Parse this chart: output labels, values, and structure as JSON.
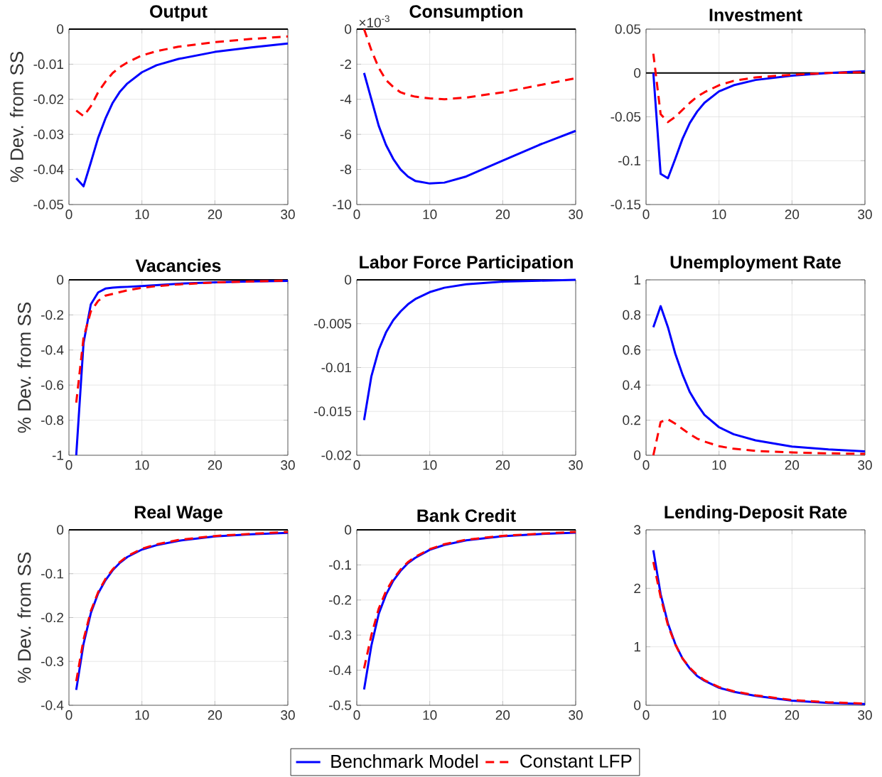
{
  "chart_data": [
    {
      "type": "line",
      "title": "Output",
      "ylabel": "% Dev. from SS",
      "x": [
        1,
        2,
        3,
        4,
        5,
        6,
        7,
        8,
        10,
        12,
        15,
        20,
        25,
        30
      ],
      "xlim": [
        0,
        30
      ],
      "xticks": [
        0,
        10,
        20,
        30
      ],
      "ylim": [
        -0.05,
        0
      ],
      "yticks": [
        -0.05,
        -0.04,
        -0.03,
        -0.02,
        -0.01,
        0
      ],
      "grid": true,
      "marker": "none",
      "ref_lines": [
        {
          "axis": "y",
          "value": 0,
          "color": "#000000"
        }
      ],
      "series": [
        {
          "color": "#0000ff",
          "line_style": "solid",
          "values": [
            -0.0425,
            -0.0448,
            -0.038,
            -0.031,
            -0.0255,
            -0.021,
            -0.0178,
            -0.0155,
            -0.0123,
            -0.0103,
            -0.0085,
            -0.0065,
            -0.0052,
            -0.0041
          ]
        },
        {
          "color": "#ff0000",
          "line_style": "dashed",
          "values": [
            -0.0232,
            -0.0248,
            -0.022,
            -0.018,
            -0.015,
            -0.0125,
            -0.0108,
            -0.0095,
            -0.0075,
            -0.0063,
            -0.005,
            -0.0037,
            -0.0028,
            -0.0021
          ]
        }
      ]
    },
    {
      "type": "line",
      "title": "Consumption",
      "annotations": [
        "×10$^{-3}$"
      ],
      "x": [
        1,
        2,
        3,
        4,
        5,
        6,
        7,
        8,
        10,
        12,
        15,
        20,
        25,
        30
      ],
      "xlim": [
        0,
        30
      ],
      "xticks": [
        0,
        10,
        20,
        30
      ],
      "ylim": [
        -10,
        0
      ],
      "yticks": [
        -10,
        -8,
        -6,
        -4,
        -2,
        0
      ],
      "grid": true,
      "marker": "none",
      "ref_lines": [
        {
          "axis": "y",
          "value": 0,
          "color": "#000000"
        }
      ],
      "series": [
        {
          "color": "#0000ff",
          "line_style": "solid",
          "values": [
            -2.5,
            -4.0,
            -5.5,
            -6.6,
            -7.4,
            -8.0,
            -8.4,
            -8.65,
            -8.8,
            -8.75,
            -8.4,
            -7.5,
            -6.6,
            -5.8
          ]
        },
        {
          "color": "#ff0000",
          "line_style": "dashed",
          "values": [
            0,
            -1.2,
            -2.2,
            -2.9,
            -3.3,
            -3.6,
            -3.75,
            -3.85,
            -3.95,
            -4.0,
            -3.9,
            -3.6,
            -3.2,
            -2.8
          ]
        }
      ]
    },
    {
      "type": "line",
      "title": "Investment",
      "x": [
        1,
        2,
        3,
        4,
        5,
        6,
        7,
        8,
        10,
        12,
        15,
        20,
        25,
        30
      ],
      "xlim": [
        0,
        30
      ],
      "xticks": [
        0,
        10,
        20,
        30
      ],
      "ylim": [
        -0.15,
        0.05
      ],
      "yticks": [
        -0.15,
        -0.1,
        -0.05,
        0,
        0.05
      ],
      "grid": true,
      "marker": "none",
      "ref_lines": [
        {
          "axis": "y",
          "value": 0,
          "color": "#000000"
        }
      ],
      "series": [
        {
          "color": "#0000ff",
          "line_style": "solid",
          "values": [
            0,
            -0.115,
            -0.12,
            -0.098,
            -0.075,
            -0.057,
            -0.044,
            -0.034,
            -0.021,
            -0.014,
            -0.008,
            -0.003,
            0,
            0.002
          ]
        },
        {
          "color": "#ff0000",
          "line_style": "dashed",
          "values": [
            0.022,
            -0.047,
            -0.056,
            -0.05,
            -0.042,
            -0.034,
            -0.027,
            -0.022,
            -0.014,
            -0.009,
            -0.005,
            -0.002,
            0,
            0.001
          ]
        }
      ]
    },
    {
      "type": "line",
      "title": "Vacancies",
      "ylabel": "% Dev. from SS",
      "x": [
        1,
        2,
        3,
        4,
        5,
        6,
        7,
        8,
        10,
        12,
        15,
        20,
        25,
        30
      ],
      "xlim": [
        0,
        30
      ],
      "xticks": [
        0,
        10,
        20,
        30
      ],
      "ylim": [
        -1,
        0
      ],
      "yticks": [
        -1,
        -0.8,
        -0.6,
        -0.4,
        -0.2,
        0
      ],
      "grid": true,
      "marker": "none",
      "ref_lines": [
        {
          "axis": "y",
          "value": 0,
          "color": "#000000"
        }
      ],
      "series": [
        {
          "color": "#0000ff",
          "line_style": "solid",
          "values": [
            -1.0,
            -0.36,
            -0.14,
            -0.072,
            -0.05,
            -0.045,
            -0.042,
            -0.04,
            -0.035,
            -0.03,
            -0.022,
            -0.014,
            -0.009,
            -0.006
          ]
        },
        {
          "color": "#ff0000",
          "line_style": "dashed",
          "values": [
            -0.7,
            -0.33,
            -0.18,
            -0.12,
            -0.09,
            -0.08,
            -0.07,
            -0.06,
            -0.045,
            -0.036,
            -0.026,
            -0.015,
            -0.009,
            -0.005
          ]
        }
      ]
    },
    {
      "type": "line",
      "title": "Labor Force Participation",
      "x": [
        1,
        2,
        3,
        4,
        5,
        6,
        7,
        8,
        10,
        12,
        15,
        20,
        25,
        30
      ],
      "xlim": [
        0,
        30
      ],
      "xticks": [
        0,
        10,
        20,
        30
      ],
      "ylim": [
        -0.02,
        0
      ],
      "yticks": [
        -0.02,
        -0.015,
        -0.01,
        -0.005,
        0
      ],
      "grid": true,
      "marker": "none",
      "ref_lines": [
        {
          "axis": "y",
          "value": 0,
          "color": "#000000"
        }
      ],
      "series": [
        {
          "color": "#0000ff",
          "line_style": "solid",
          "values": [
            -0.016,
            -0.011,
            -0.008,
            -0.006,
            -0.0046,
            -0.0036,
            -0.0028,
            -0.0022,
            -0.0014,
            -0.0009,
            -0.0005,
            -0.0002,
            -0.0001,
            0
          ]
        }
      ]
    },
    {
      "type": "line",
      "title": "Unemployment Rate",
      "x": [
        1,
        2,
        3,
        4,
        5,
        6,
        7,
        8,
        10,
        12,
        15,
        20,
        25,
        30
      ],
      "xlim": [
        0,
        30
      ],
      "xticks": [
        0,
        10,
        20,
        30
      ],
      "ylim": [
        0,
        1
      ],
      "yticks": [
        0,
        0.2,
        0.4,
        0.6,
        0.8,
        1
      ],
      "grid": true,
      "marker": "none",
      "series": [
        {
          "color": "#0000ff",
          "line_style": "solid",
          "values": [
            0.73,
            0.85,
            0.73,
            0.58,
            0.46,
            0.36,
            0.29,
            0.23,
            0.16,
            0.12,
            0.085,
            0.05,
            0.033,
            0.022
          ]
        },
        {
          "color": "#ff0000",
          "line_style": "dashed",
          "values": [
            0,
            0.19,
            0.205,
            0.18,
            0.15,
            0.12,
            0.095,
            0.078,
            0.052,
            0.037,
            0.025,
            0.016,
            0.011,
            0.008
          ]
        }
      ]
    },
    {
      "type": "line",
      "title": "Real Wage",
      "ylabel": "% Dev. from SS",
      "x": [
        1,
        2,
        3,
        4,
        5,
        6,
        7,
        8,
        10,
        12,
        15,
        20,
        25,
        30
      ],
      "xlim": [
        0,
        30
      ],
      "xticks": [
        0,
        10,
        20,
        30
      ],
      "ylim": [
        -0.4,
        0
      ],
      "yticks": [
        -0.4,
        -0.3,
        -0.2,
        -0.1,
        0
      ],
      "grid": true,
      "marker": "none",
      "ref_lines": [
        {
          "axis": "y",
          "value": 0,
          "color": "#000000"
        }
      ],
      "series": [
        {
          "color": "#0000ff",
          "line_style": "solid",
          "values": [
            -0.365,
            -0.26,
            -0.19,
            -0.145,
            -0.115,
            -0.092,
            -0.075,
            -0.062,
            -0.045,
            -0.035,
            -0.025,
            -0.015,
            -0.01,
            -0.007
          ]
        },
        {
          "color": "#ff0000",
          "line_style": "dashed",
          "values": [
            -0.345,
            -0.25,
            -0.185,
            -0.142,
            -0.112,
            -0.09,
            -0.073,
            -0.06,
            -0.043,
            -0.033,
            -0.023,
            -0.014,
            -0.009,
            -0.005
          ]
        }
      ]
    },
    {
      "type": "line",
      "title": "Bank Credit",
      "legend": "bottom",
      "x": [
        1,
        2,
        3,
        4,
        5,
        6,
        7,
        8,
        10,
        12,
        15,
        20,
        25,
        30
      ],
      "xlim": [
        0,
        30
      ],
      "xticks": [
        0,
        10,
        20,
        30
      ],
      "ylim": [
        -0.5,
        0
      ],
      "yticks": [
        -0.5,
        -0.4,
        -0.3,
        -0.2,
        -0.1,
        0
      ],
      "grid": true,
      "marker": "none",
      "ref_lines": [
        {
          "axis": "y",
          "value": 0,
          "color": "#000000"
        }
      ],
      "series": [
        {
          "name": "Benchmark Model",
          "color": "#0000ff",
          "line_style": "solid",
          "values": [
            -0.455,
            -0.33,
            -0.24,
            -0.185,
            -0.145,
            -0.117,
            -0.095,
            -0.08,
            -0.057,
            -0.043,
            -0.03,
            -0.018,
            -0.012,
            -0.008
          ]
        },
        {
          "name": "Constant LFP",
          "color": "#ff0000",
          "line_style": "dashed",
          "values": [
            -0.395,
            -0.3,
            -0.225,
            -0.175,
            -0.14,
            -0.113,
            -0.092,
            -0.077,
            -0.055,
            -0.041,
            -0.028,
            -0.017,
            -0.011,
            -0.006
          ]
        }
      ]
    },
    {
      "type": "line",
      "title": "Lending-Deposit Rate",
      "x": [
        1,
        2,
        3,
        4,
        5,
        6,
        7,
        8,
        10,
        12,
        15,
        20,
        25,
        30
      ],
      "xlim": [
        0,
        30
      ],
      "xticks": [
        0,
        10,
        20,
        30
      ],
      "ylim": [
        0,
        3
      ],
      "yticks": [
        0,
        1,
        2,
        3
      ],
      "grid": true,
      "marker": "none",
      "series": [
        {
          "color": "#0000ff",
          "line_style": "solid",
          "values": [
            2.65,
            1.9,
            1.4,
            1.05,
            0.8,
            0.63,
            0.5,
            0.42,
            0.3,
            0.23,
            0.16,
            0.08,
            0.04,
            0.02
          ]
        },
        {
          "color": "#ff0000",
          "line_style": "dashed",
          "values": [
            2.45,
            1.85,
            1.37,
            1.04,
            0.8,
            0.64,
            0.52,
            0.43,
            0.31,
            0.24,
            0.17,
            0.09,
            0.05,
            0.03
          ]
        }
      ]
    }
  ]
}
